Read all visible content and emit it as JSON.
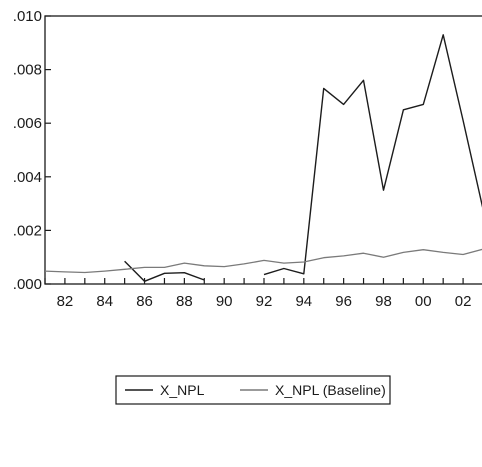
{
  "chart_data": {
    "type": "line",
    "title": "",
    "xlabel": "",
    "ylabel": "",
    "x": [
      1981,
      1982,
      1983,
      1984,
      1985,
      1986,
      1987,
      1988,
      1989,
      1990,
      1991,
      1992,
      1993,
      1994,
      1995,
      1996,
      1997,
      1998,
      1999,
      2000,
      2001,
      2002,
      2003
    ],
    "x_tick_labels": [
      "82",
      "84",
      "86",
      "88",
      "90",
      "92",
      "94",
      "96",
      "98",
      "00",
      "02"
    ],
    "x_tick_values": [
      1982,
      1984,
      1986,
      1988,
      1990,
      1992,
      1994,
      1996,
      1998,
      2000,
      2002
    ],
    "xlim": [
      1981,
      2003
    ],
    "ylim": [
      0,
      0.01
    ],
    "y_tick_values": [
      0,
      0.002,
      0.004,
      0.006,
      0.008,
      0.01
    ],
    "y_tick_labels": [
      ".000",
      ".002",
      ".004",
      ".006",
      ".008",
      ".010"
    ],
    "grid": false,
    "legend_position": "bottom-center",
    "series": [
      {
        "name": "X_NPL",
        "color": "#1c1c1c",
        "values": [
          null,
          null,
          null,
          null,
          0.00085,
          0.0001,
          0.0004,
          0.00042,
          0.00015,
          null,
          null,
          0.00035,
          0.00058,
          0.00038,
          0.0073,
          0.0067,
          0.0076,
          0.0035,
          0.0065,
          0.0067,
          0.0093,
          0.0061,
          0.0028
        ]
      },
      {
        "name": "X_NPL (Baseline)",
        "color": "#7a7a7a",
        "values": [
          0.00048,
          0.00045,
          0.00043,
          0.00048,
          0.00055,
          0.00062,
          0.00062,
          0.00078,
          0.00068,
          0.00065,
          0.00075,
          0.00088,
          0.00078,
          0.00082,
          0.00098,
          0.00105,
          0.00115,
          0.001,
          0.00118,
          0.00128,
          0.00118,
          0.0011,
          0.0013
        ]
      }
    ]
  }
}
